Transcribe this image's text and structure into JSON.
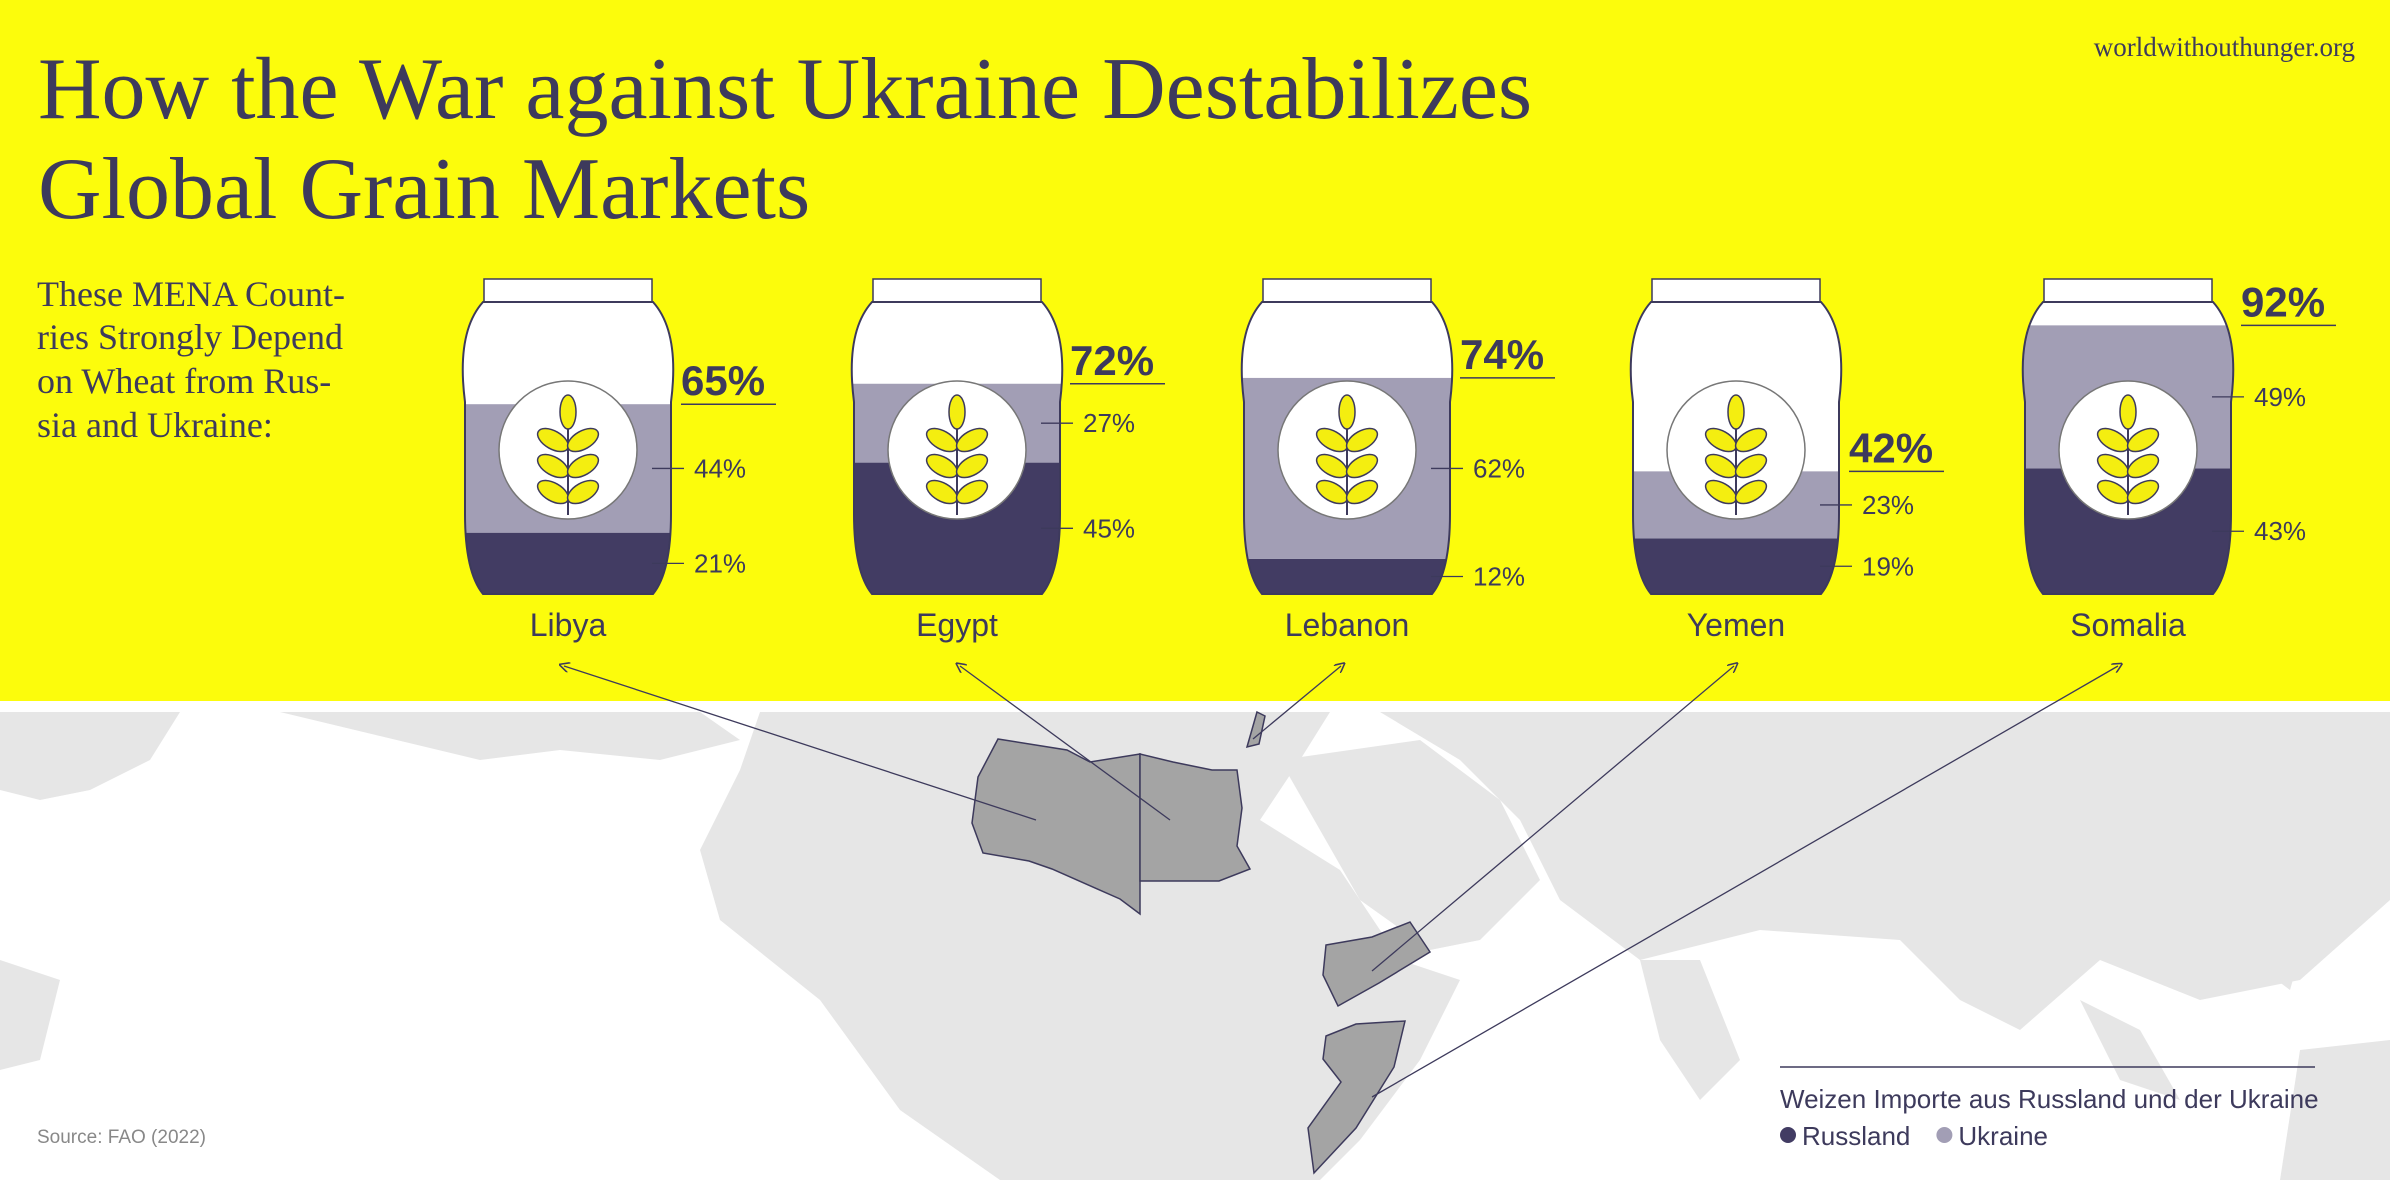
{
  "chart_data": {
    "type": "bag",
    "title": [
      "How the War against Ukraine Destabilizes",
      "Global Grain Markets"
    ],
    "subtitle": [
      "These MENA Count-",
      "ries Strongly Depend",
      "on Wheat from Rus-",
      "sia and Ukraine:"
    ],
    "website": "worldwithouthunger.org",
    "source": "Source: FAO (2022)",
    "legend_title": "Weizen Importe aus Russland und der Ukraine",
    "categories": [
      "Libya",
      "Egypt",
      "Lebanon",
      "Yemen",
      "Somalia"
    ],
    "ylim": [
      0,
      100
    ],
    "series": [
      {
        "name": "Russland",
        "color": "#423c63",
        "values": [
          21,
          45,
          12,
          19,
          43
        ],
        "value_labels": [
          "21%",
          "45%",
          "12%",
          "19%",
          "43%"
        ]
      },
      {
        "name": "Ukraine",
        "color": "#a29eb5",
        "values": [
          44,
          27,
          62,
          23,
          49
        ],
        "value_labels": [
          "44%",
          "27%",
          "62%",
          "23%",
          "49%"
        ]
      }
    ],
    "total": {
      "values": [
        65,
        72,
        74,
        42,
        92
      ],
      "value_labels": [
        "65%",
        "72%",
        "74%",
        "42%",
        "92%"
      ]
    }
  }
}
